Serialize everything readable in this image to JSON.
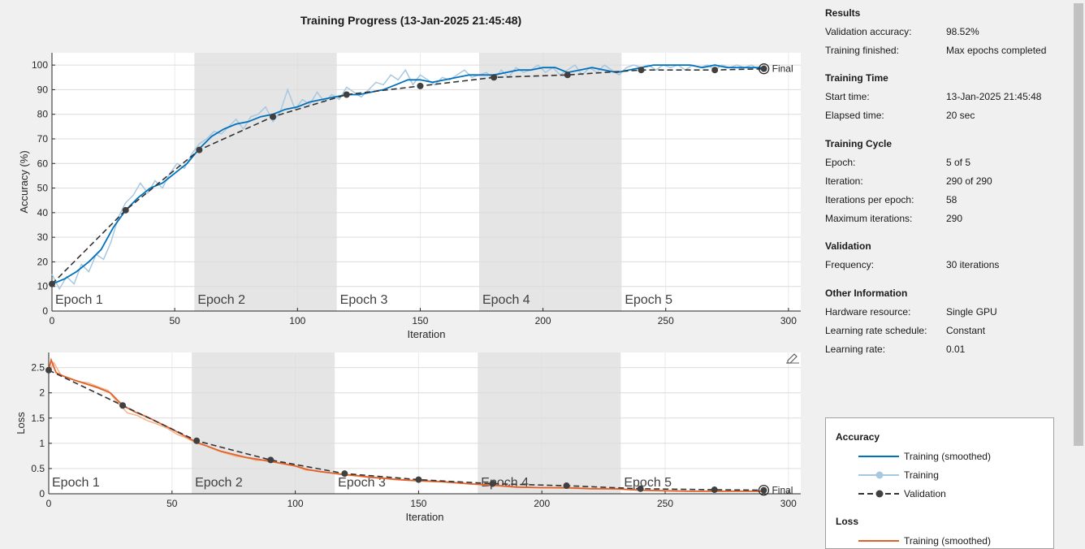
{
  "title": "Training Progress (13-Jan-2025 21:45:48)",
  "colors": {
    "training_smoothed_acc": "#0072bd",
    "training_raw_acc": "#a8c8e0",
    "training_smoothed_loss": "#e0622a",
    "training_raw_loss": "#f2b38c",
    "validation": "#333333",
    "epoch_shade": "#e5e5e5",
    "plot_bg": "#ffffff",
    "page_bg": "#f0f0f0"
  },
  "chart_data": [
    {
      "type": "line",
      "ylabel": "Accuracy (%)",
      "xlabel": "Iteration",
      "xlim": [
        0,
        305
      ],
      "ylim": [
        0,
        105
      ],
      "xticks": [
        0,
        50,
        100,
        150,
        200,
        250,
        300
      ],
      "yticks": [
        0,
        10,
        20,
        30,
        40,
        50,
        60,
        70,
        80,
        90,
        100
      ],
      "grid": true,
      "epochs": [
        {
          "label": "Epoch 1",
          "start": 0,
          "end": 58
        },
        {
          "label": "Epoch 2",
          "start": 58,
          "end": 116
        },
        {
          "label": "Epoch 3",
          "start": 116,
          "end": 174
        },
        {
          "label": "Epoch 4",
          "start": 174,
          "end": 232
        },
        {
          "label": "Epoch 5",
          "start": 232,
          "end": 290
        }
      ],
      "final_label": "Final",
      "series": [
        {
          "name": "Training (smoothed)",
          "x": [
            0,
            5,
            10,
            15,
            20,
            25,
            30,
            35,
            40,
            45,
            50,
            55,
            60,
            65,
            70,
            75,
            80,
            85,
            90,
            95,
            100,
            105,
            110,
            115,
            120,
            125,
            130,
            135,
            140,
            145,
            150,
            155,
            160,
            165,
            170,
            175,
            180,
            185,
            190,
            195,
            200,
            205,
            210,
            215,
            220,
            225,
            230,
            235,
            240,
            245,
            250,
            255,
            260,
            265,
            270,
            275,
            280,
            285,
            290
          ],
          "values": [
            11,
            13,
            16,
            20,
            25,
            34,
            41,
            46,
            50,
            52,
            56,
            60,
            66,
            71,
            74,
            76,
            77,
            79,
            80,
            82,
            83,
            85,
            86,
            87,
            88,
            88,
            89,
            90,
            92,
            94,
            94,
            93,
            94,
            95,
            96,
            96,
            96,
            97,
            98,
            98,
            99,
            99,
            97,
            98,
            99,
            98,
            97,
            98,
            99,
            100,
            100,
            100,
            100,
            99,
            100,
            99,
            99,
            99,
            99
          ]
        },
        {
          "name": "Training",
          "x": [
            0,
            3,
            6,
            9,
            12,
            15,
            18,
            21,
            24,
            27,
            30,
            33,
            36,
            39,
            42,
            45,
            48,
            51,
            54,
            57,
            60,
            63,
            66,
            69,
            72,
            75,
            78,
            81,
            84,
            87,
            90,
            93,
            96,
            99,
            102,
            105,
            108,
            111,
            114,
            117,
            120,
            123,
            126,
            129,
            132,
            135,
            138,
            141,
            144,
            147,
            150,
            153,
            156,
            159,
            162,
            165,
            168,
            171,
            174,
            177,
            180,
            183,
            186,
            189,
            192,
            195,
            198,
            201,
            204,
            207,
            210,
            213,
            216,
            219,
            222,
            225,
            228,
            231,
            234,
            237,
            240,
            243,
            246,
            249,
            252,
            255,
            258,
            261,
            264,
            267,
            270,
            273,
            276,
            279,
            282,
            285,
            288,
            290
          ],
          "values": [
            15,
            9,
            14,
            11,
            19,
            16,
            23,
            21,
            28,
            38,
            44,
            47,
            52,
            48,
            53,
            50,
            56,
            60,
            58,
            64,
            68,
            70,
            73,
            72,
            75,
            78,
            74,
            79,
            80,
            83,
            77,
            81,
            90,
            82,
            86,
            84,
            89,
            85,
            88,
            86,
            91,
            89,
            87,
            90,
            93,
            92,
            96,
            94,
            98,
            92,
            96,
            94,
            92,
            95,
            94,
            96,
            98,
            95,
            96,
            97,
            94,
            98,
            95,
            99,
            97,
            98,
            100,
            97,
            99,
            96,
            98,
            100,
            96,
            99,
            97,
            100,
            98,
            96,
            99,
            100,
            99,
            100,
            98,
            100,
            99,
            100,
            98,
            100,
            99,
            100,
            98,
            100,
            99,
            100,
            99,
            100,
            98,
            99
          ]
        },
        {
          "name": "Validation",
          "x": [
            0,
            30,
            60,
            90,
            120,
            150,
            180,
            210,
            240,
            270,
            290
          ],
          "values": [
            11,
            41,
            65.5,
            79,
            88,
            91.5,
            95,
            96,
            98,
            98,
            98.5
          ]
        }
      ]
    },
    {
      "type": "line",
      "ylabel": "Loss",
      "xlabel": "Iteration",
      "xlim": [
        0,
        305
      ],
      "ylim": [
        0,
        2.8
      ],
      "xticks": [
        0,
        50,
        100,
        150,
        200,
        250,
        300
      ],
      "yticks": [
        0,
        0.5,
        1,
        1.5,
        2,
        2.5
      ],
      "ytick_labels": [
        "0",
        "0.5",
        "1",
        "1.5",
        "2",
        "2.5"
      ],
      "grid": true,
      "epochs": [
        {
          "label": "Epoch 1",
          "start": 0,
          "end": 58
        },
        {
          "label": "Epoch 2",
          "start": 58,
          "end": 116
        },
        {
          "label": "Epoch 3",
          "start": 116,
          "end": 174
        },
        {
          "label": "Epoch 4",
          "start": 174,
          "end": 232
        },
        {
          "label": "Epoch 5",
          "start": 232,
          "end": 290
        }
      ],
      "final_label": "Final",
      "series": [
        {
          "name": "Training (smoothed)",
          "x": [
            0,
            1,
            3,
            6,
            10,
            15,
            20,
            25,
            30,
            35,
            40,
            45,
            50,
            55,
            60,
            65,
            70,
            75,
            80,
            85,
            90,
            95,
            100,
            105,
            110,
            115,
            120,
            125,
            130,
            135,
            140,
            145,
            150,
            160,
            170,
            180,
            190,
            200,
            210,
            220,
            230,
            240,
            250,
            260,
            270,
            280,
            290
          ],
          "values": [
            2.45,
            2.65,
            2.4,
            2.33,
            2.26,
            2.18,
            2.1,
            2.0,
            1.75,
            1.62,
            1.52,
            1.4,
            1.28,
            1.15,
            1.02,
            0.93,
            0.84,
            0.78,
            0.72,
            0.68,
            0.64,
            0.6,
            0.55,
            0.48,
            0.44,
            0.41,
            0.38,
            0.36,
            0.33,
            0.31,
            0.29,
            0.27,
            0.26,
            0.24,
            0.2,
            0.17,
            0.13,
            0.12,
            0.12,
            0.1,
            0.1,
            0.07,
            0.06,
            0.05,
            0.05,
            0.05,
            0.05
          ]
        },
        {
          "name": "Training",
          "x": [
            0,
            2,
            5,
            8,
            12,
            16,
            20,
            24,
            28,
            32,
            36,
            40,
            44,
            48,
            52,
            56,
            60,
            64,
            68,
            72,
            76,
            80,
            84,
            88,
            92,
            96,
            100,
            104,
            108,
            112,
            116,
            120,
            125,
            130,
            135,
            140,
            145,
            150,
            160,
            170,
            180,
            190,
            200,
            210,
            220,
            230,
            240,
            250,
            260,
            270,
            280,
            290
          ],
          "values": [
            2.4,
            2.6,
            2.35,
            2.3,
            2.22,
            2.2,
            2.12,
            2.05,
            1.8,
            1.6,
            1.55,
            1.45,
            1.38,
            1.3,
            1.18,
            1.1,
            1.0,
            0.95,
            0.86,
            0.8,
            0.74,
            0.72,
            0.66,
            0.67,
            0.62,
            0.58,
            0.55,
            0.47,
            0.46,
            0.43,
            0.4,
            0.37,
            0.35,
            0.32,
            0.31,
            0.28,
            0.27,
            0.25,
            0.23,
            0.2,
            0.16,
            0.14,
            0.12,
            0.11,
            0.1,
            0.09,
            0.07,
            0.06,
            0.05,
            0.05,
            0.05,
            0.05
          ]
        },
        {
          "name": "Validation",
          "x": [
            0,
            30,
            60,
            90,
            120,
            150,
            180,
            210,
            240,
            270,
            290
          ],
          "values": [
            2.45,
            1.75,
            1.05,
            0.67,
            0.4,
            0.28,
            0.2,
            0.16,
            0.1,
            0.08,
            0.07
          ]
        }
      ]
    }
  ],
  "side": {
    "results_title": "Results",
    "validation_accuracy_label": "Validation accuracy:",
    "validation_accuracy_value": "98.52%",
    "training_finished_label": "Training finished:",
    "training_finished_value": "Max epochs completed",
    "training_time_title": "Training Time",
    "start_time_label": "Start time:",
    "start_time_value": "13-Jan-2025 21:45:48",
    "elapsed_time_label": "Elapsed time:",
    "elapsed_time_value": "20 sec",
    "training_cycle_title": "Training Cycle",
    "epoch_label": "Epoch:",
    "epoch_value": "5 of 5",
    "iteration_label": "Iteration:",
    "iteration_value": "290 of 290",
    "iter_per_epoch_label": "Iterations per epoch:",
    "iter_per_epoch_value": "58",
    "max_iter_label": "Maximum iterations:",
    "max_iter_value": "290",
    "validation_title": "Validation",
    "frequency_label": "Frequency:",
    "frequency_value": "30 iterations",
    "other_title": "Other Information",
    "hardware_label": "Hardware resource:",
    "hardware_value": "Single GPU",
    "lr_schedule_label": "Learning rate schedule:",
    "lr_schedule_value": "Constant",
    "lr_label": "Learning rate:",
    "lr_value": "0.01"
  },
  "legend": {
    "accuracy_title": "Accuracy",
    "training_smoothed": "Training (smoothed)",
    "training": "Training",
    "validation": "Validation",
    "loss_title": "Loss",
    "loss_training_smoothed": "Training (smoothed)"
  },
  "icons": {
    "edit": "pencil-edit-icon"
  }
}
